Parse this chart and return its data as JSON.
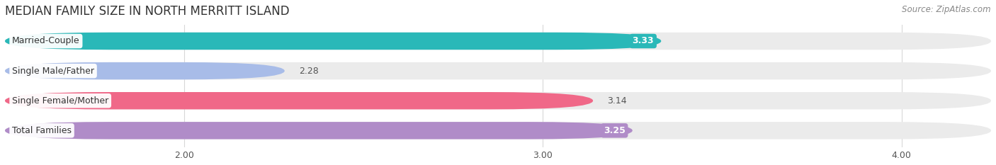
{
  "title": "MEDIAN FAMILY SIZE IN NORTH MERRITT ISLAND",
  "source": "Source: ZipAtlas.com",
  "categories": [
    "Married-Couple",
    "Single Male/Father",
    "Single Female/Mother",
    "Total Families"
  ],
  "values": [
    3.33,
    2.28,
    3.14,
    3.25
  ],
  "bar_colors": [
    "#2ab8b8",
    "#a8bce8",
    "#f06888",
    "#b08cc8"
  ],
  "bar_bg_colors": [
    "#ebebeb",
    "#ebebeb",
    "#ebebeb",
    "#ebebeb"
  ],
  "value_label_on_bar": [
    true,
    false,
    false,
    true
  ],
  "label_text_colors": [
    "#ffffff",
    "#666666",
    "#666666",
    "#ffffff"
  ],
  "xlim_min": 1.5,
  "xlim_max": 4.25,
  "xticks": [
    2.0,
    3.0,
    4.0
  ],
  "xtick_labels": [
    "2.00",
    "3.00",
    "4.00"
  ],
  "title_fontsize": 12,
  "source_fontsize": 8.5,
  "bar_height": 0.58,
  "bar_label_fontsize": 9,
  "category_fontsize": 9,
  "bg_color": "#ffffff",
  "grid_color": "#d8d8d8"
}
